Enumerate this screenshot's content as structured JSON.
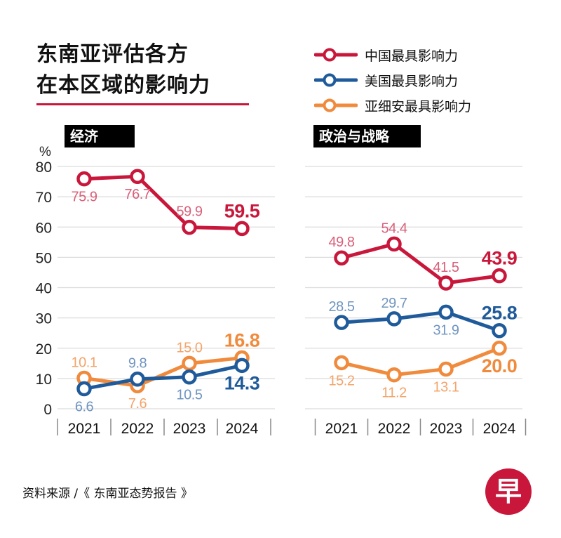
{
  "title_lines": [
    "东南亚评估各方",
    "在本区域的影响力"
  ],
  "legend": [
    {
      "label": "中国最具影响力",
      "color": "#c8173b"
    },
    {
      "label": "美国最具影响力",
      "color": "#1f5a9a"
    },
    {
      "label": "亚细安最具影响力",
      "color": "#f08a3c"
    }
  ],
  "source": "资料来源 /《 东南亚态势报告 》",
  "logo_text": "早",
  "chart_data": [
    {
      "type": "line",
      "title": "经济",
      "ylabel": "%",
      "ylim": [
        0,
        80
      ],
      "yticks": [
        0,
        10,
        20,
        30,
        40,
        50,
        60,
        70,
        80
      ],
      "grid": true,
      "categories": [
        "2021",
        "2022",
        "2023",
        "2024"
      ],
      "series": [
        {
          "name": "中国最具影响力",
          "color": "#c8173b",
          "label_color": "#d9607a",
          "values": [
            75.9,
            76.7,
            59.9,
            59.5
          ],
          "labels": [
            "75.9",
            "76.7",
            "59.9",
            "59.5"
          ]
        },
        {
          "name": "亚细安最具影响力",
          "color": "#f08a3c",
          "label_color": "#f4a46a",
          "values": [
            10.1,
            7.6,
            15.0,
            16.8
          ],
          "labels": [
            "10.1",
            "7.6",
            "15.0",
            "16.8"
          ]
        },
        {
          "name": "美国最具影响力",
          "color": "#1f5a9a",
          "label_color": "#6f95c0",
          "values": [
            6.6,
            9.8,
            10.5,
            14.3
          ],
          "labels": [
            "6.6",
            "9.8",
            "10.5",
            "14.3"
          ]
        }
      ]
    },
    {
      "type": "line",
      "title": "政治与战略",
      "ylim": [
        0,
        80
      ],
      "grid": true,
      "categories": [
        "2021",
        "2022",
        "2023",
        "2024"
      ],
      "series": [
        {
          "name": "中国最具影响力",
          "color": "#c8173b",
          "label_color": "#d9607a",
          "values": [
            49.8,
            54.4,
            41.5,
            43.9
          ],
          "labels": [
            "49.8",
            "54.4",
            "41.5",
            "43.9"
          ]
        },
        {
          "name": "美国最具影响力",
          "color": "#1f5a9a",
          "label_color": "#6f95c0",
          "values": [
            28.5,
            29.7,
            31.9,
            25.8
          ],
          "labels": [
            "28.5",
            "29.7",
            "31.9",
            "25.8"
          ]
        },
        {
          "name": "亚细安最具影响力",
          "color": "#f08a3c",
          "label_color": "#f4a46a",
          "values": [
            15.2,
            11.2,
            13.1,
            20.0
          ],
          "labels": [
            "15.2",
            "11.2",
            "13.1",
            "20.0"
          ]
        }
      ]
    }
  ]
}
